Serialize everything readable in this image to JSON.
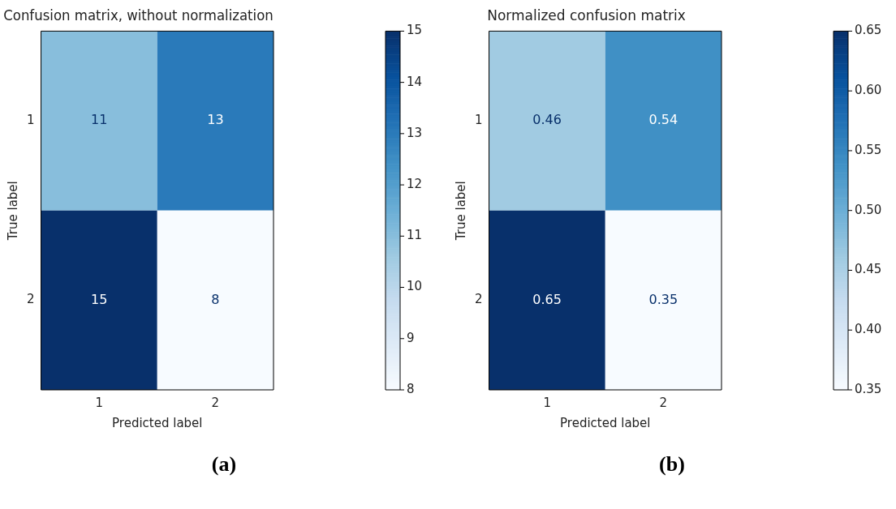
{
  "chart_data": [
    {
      "type": "heatmap",
      "title": "Confusion matrix, without normalization",
      "xlabel": "Predicted label",
      "ylabel": "True label",
      "categories": [
        "1",
        "2"
      ],
      "y_categories": [
        "1",
        "2"
      ],
      "cells": [
        [
          11,
          13
        ],
        [
          15,
          8
        ]
      ],
      "data_labels": true,
      "clim": [
        8,
        15
      ],
      "cticks": [
        8,
        9,
        10,
        11,
        12,
        13,
        14,
        15
      ],
      "annotations": [
        "(a)"
      ]
    },
    {
      "type": "heatmap",
      "title": "Normalized confusion matrix",
      "xlabel": "Predicted label",
      "ylabel": "True label",
      "categories": [
        "1",
        "2"
      ],
      "y_categories": [
        "1",
        "2"
      ],
      "cells": [
        [
          0.46,
          0.54
        ],
        [
          0.65,
          0.35
        ]
      ],
      "data_labels": true,
      "clim": [
        0.35,
        0.65
      ],
      "cticks": [
        {
          "value": 0.35,
          "label": "0.35"
        },
        {
          "value": 0.4,
          "label": "0.40"
        },
        {
          "value": 0.45,
          "label": "0.45"
        },
        {
          "value": 0.5,
          "label": "0.50"
        },
        {
          "value": 0.55,
          "label": "0.55"
        },
        {
          "value": 0.6,
          "label": "0.60"
        },
        {
          "value": 0.65,
          "label": "0.65"
        }
      ],
      "annotations": [
        "(b)"
      ]
    }
  ]
}
